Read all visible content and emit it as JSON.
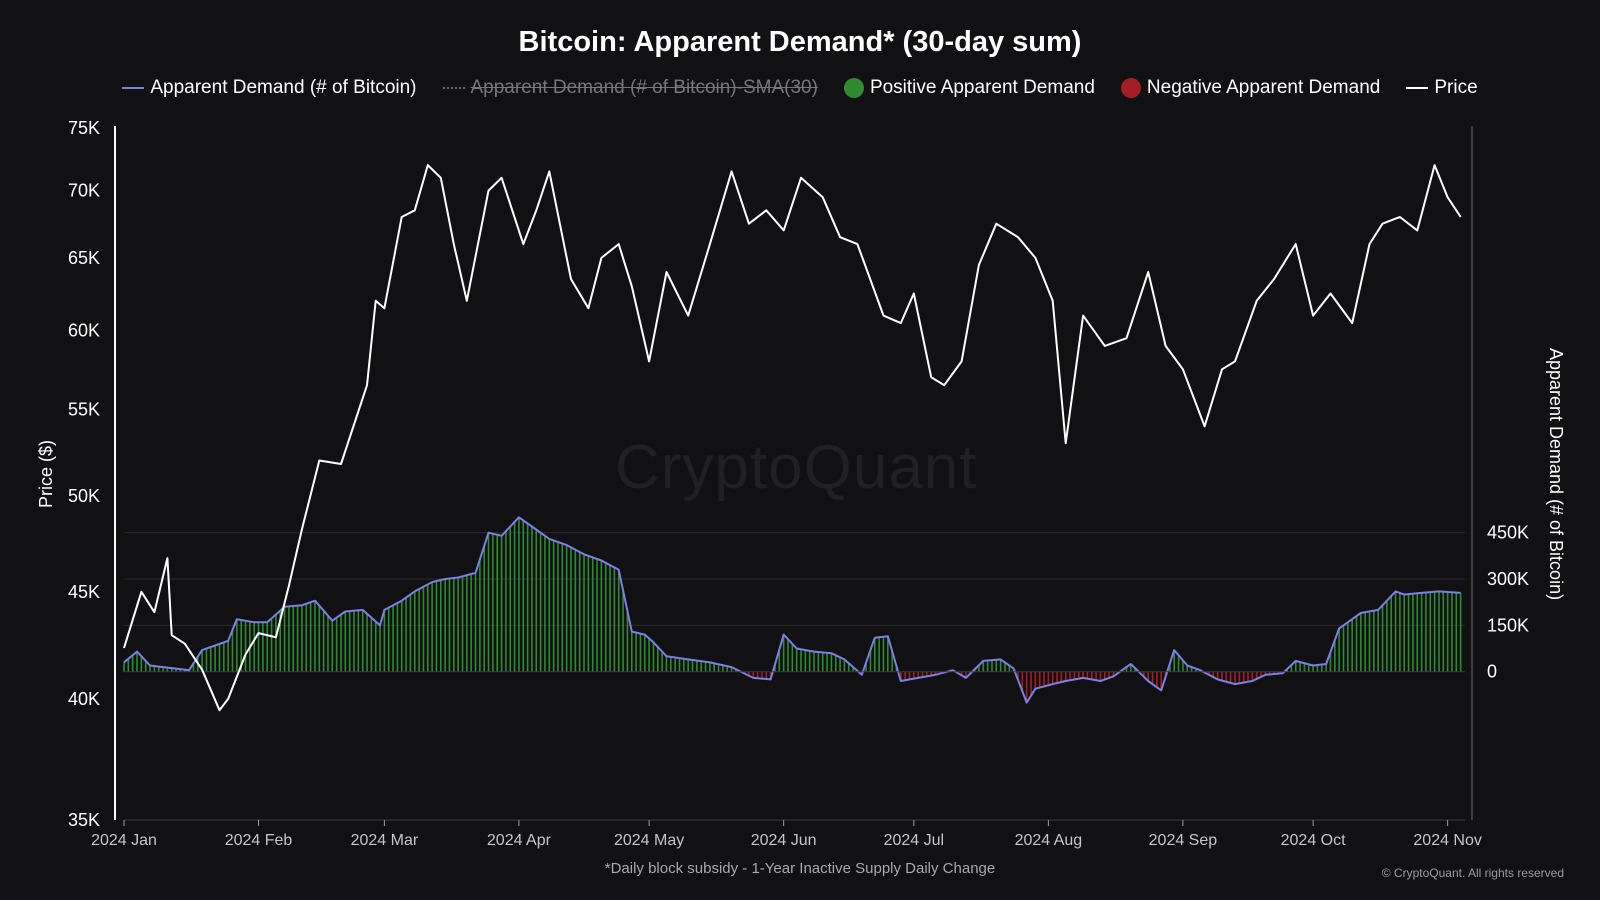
{
  "title": "Bitcoin: Apparent Demand* (30-day sum)",
  "legend": [
    {
      "label": "Apparent Demand (# of Bitcoin)",
      "kind": "line",
      "color": "#7b7fe6",
      "disabled": false
    },
    {
      "label": "Apparent Demand (# of Bitcoin)-SMA(30)",
      "kind": "dashed",
      "color": "#666666",
      "disabled": true
    },
    {
      "label": "Positive Apparent Demand",
      "kind": "dot",
      "color": "#2e8b2e",
      "disabled": false
    },
    {
      "label": "Negative Apparent Demand",
      "kind": "dot",
      "color": "#a31f24",
      "disabled": false
    },
    {
      "label": "Price",
      "kind": "line",
      "color": "#ffffff",
      "disabled": false
    }
  ],
  "watermark": "CryptoQuant",
  "footnote": "*Daily block subsidy - 1-Year Inactive Supply Daily Change",
  "copyright": "© CryptoQuant. All rights reserved",
  "chart_data": {
    "type": "line",
    "title": "Bitcoin: Apparent Demand* (30-day sum)",
    "xlabel": "",
    "ylabel_left": "Price ($)",
    "ylabel_right": "Apparent Demand (# of Bitcoin)",
    "left_axis": {
      "scale": "log",
      "ylim": [
        35000,
        75000
      ],
      "ticks": [
        35000,
        40000,
        45000,
        50000,
        55000,
        60000,
        65000,
        70000,
        75000
      ],
      "tick_labels": [
        "35K",
        "40K",
        "45K",
        "50K",
        "55K",
        "60K",
        "65K",
        "70K",
        "75K"
      ]
    },
    "right_axis": {
      "scale": "linear",
      "ylim": [
        -480000,
        1760000
      ],
      "ticks": [
        0,
        150000,
        300000,
        450000
      ],
      "tick_labels": [
        "0",
        "150K",
        "300K",
        "450K"
      ]
    },
    "x_range": [
      "2024-01-01",
      "2024-11-05"
    ],
    "x_ticks": [
      "2024-01-01",
      "2024-02-01",
      "2024-03-01",
      "2024-04-01",
      "2024-05-01",
      "2024-06-01",
      "2024-07-01",
      "2024-08-01",
      "2024-09-01",
      "2024-10-01",
      "2024-11-01"
    ],
    "x_tick_labels": [
      "2024 Jan",
      "2024 Feb",
      "2024 Mar",
      "2024 Apr",
      "2024 May",
      "2024 Jun",
      "2024 Jul",
      "2024 Aug",
      "2024 Sep",
      "2024 Oct",
      "2024 Nov"
    ],
    "grid": true,
    "legend_position": "top",
    "colors": {
      "demand_line": "#7b7fe6",
      "positive": "#2e8b2e",
      "negative": "#a31f24",
      "price": "#ffffff"
    },
    "series": [
      {
        "name": "Price",
        "axis": "left",
        "x": [
          "2024-01-01",
          "2024-01-05",
          "2024-01-08",
          "2024-01-11",
          "2024-01-12",
          "2024-01-15",
          "2024-01-19",
          "2024-01-23",
          "2024-01-25",
          "2024-01-29",
          "2024-02-01",
          "2024-02-05",
          "2024-02-08",
          "2024-02-11",
          "2024-02-15",
          "2024-02-20",
          "2024-02-26",
          "2024-02-28",
          "2024-03-01",
          "2024-03-05",
          "2024-03-08",
          "2024-03-11",
          "2024-03-14",
          "2024-03-17",
          "2024-03-20",
          "2024-03-25",
          "2024-03-28",
          "2024-04-02",
          "2024-04-05",
          "2024-04-08",
          "2024-04-13",
          "2024-04-17",
          "2024-04-20",
          "2024-04-24",
          "2024-04-27",
          "2024-05-01",
          "2024-05-05",
          "2024-05-10",
          "2024-05-15",
          "2024-05-20",
          "2024-05-24",
          "2024-05-28",
          "2024-06-01",
          "2024-06-05",
          "2024-06-10",
          "2024-06-14",
          "2024-06-18",
          "2024-06-24",
          "2024-06-28",
          "2024-07-01",
          "2024-07-05",
          "2024-07-08",
          "2024-07-12",
          "2024-07-16",
          "2024-07-20",
          "2024-07-25",
          "2024-07-29",
          "2024-08-02",
          "2024-08-05",
          "2024-08-09",
          "2024-08-14",
          "2024-08-19",
          "2024-08-24",
          "2024-08-28",
          "2024-09-01",
          "2024-09-06",
          "2024-09-10",
          "2024-09-13",
          "2024-09-18",
          "2024-09-22",
          "2024-09-27",
          "2024-10-01",
          "2024-10-05",
          "2024-10-10",
          "2024-10-14",
          "2024-10-17",
          "2024-10-21",
          "2024-10-25",
          "2024-10-29",
          "2024-11-01",
          "2024-11-04"
        ],
        "values": [
          42300,
          45000,
          44000,
          46700,
          42900,
          42500,
          41300,
          39500,
          40000,
          42000,
          43000,
          42800,
          45300,
          48200,
          52000,
          51800,
          56500,
          62000,
          61500,
          68000,
          68500,
          72000,
          71000,
          66000,
          62000,
          70000,
          71000,
          66000,
          68500,
          71500,
          63500,
          61500,
          65000,
          66000,
          63000,
          58000,
          64000,
          61000,
          66000,
          71500,
          67500,
          68500,
          67000,
          71000,
          69500,
          66500,
          66000,
          61000,
          60500,
          62500,
          57000,
          56500,
          58000,
          64500,
          67500,
          66500,
          65000,
          62000,
          53000,
          61000,
          59000,
          59500,
          64000,
          59000,
          57500,
          54000,
          57500,
          58000,
          62000,
          63500,
          66000,
          61000,
          62500,
          60500,
          66000,
          67500,
          68000,
          67000,
          72000,
          69500,
          68000
        ]
      },
      {
        "name": "Apparent Demand (# of Bitcoin)",
        "axis": "right",
        "x": [
          "2024-01-01",
          "2024-01-04",
          "2024-01-07",
          "2024-01-10",
          "2024-01-13",
          "2024-01-16",
          "2024-01-19",
          "2024-01-22",
          "2024-01-25",
          "2024-01-27",
          "2024-01-31",
          "2024-02-03",
          "2024-02-07",
          "2024-02-11",
          "2024-02-14",
          "2024-02-18",
          "2024-02-21",
          "2024-02-25",
          "2024-02-29",
          "2024-03-01",
          "2024-03-05",
          "2024-03-08",
          "2024-03-12",
          "2024-03-15",
          "2024-03-18",
          "2024-03-22",
          "2024-03-25",
          "2024-03-28",
          "2024-04-01",
          "2024-04-04",
          "2024-04-08",
          "2024-04-12",
          "2024-04-16",
          "2024-04-20",
          "2024-04-24",
          "2024-04-27",
          "2024-04-30",
          "2024-05-02",
          "2024-05-05",
          "2024-05-10",
          "2024-05-15",
          "2024-05-20",
          "2024-05-25",
          "2024-05-29",
          "2024-06-01",
          "2024-06-04",
          "2024-06-08",
          "2024-06-12",
          "2024-06-15",
          "2024-06-19",
          "2024-06-22",
          "2024-06-25",
          "2024-06-28",
          "2024-07-02",
          "2024-07-06",
          "2024-07-10",
          "2024-07-13",
          "2024-07-17",
          "2024-07-21",
          "2024-07-24",
          "2024-07-27",
          "2024-07-29",
          "2024-08-02",
          "2024-08-05",
          "2024-08-09",
          "2024-08-13",
          "2024-08-16",
          "2024-08-20",
          "2024-08-24",
          "2024-08-27",
          "2024-08-30",
          "2024-09-02",
          "2024-09-05",
          "2024-09-09",
          "2024-09-13",
          "2024-09-17",
          "2024-09-20",
          "2024-09-24",
          "2024-09-27",
          "2024-10-01",
          "2024-10-04",
          "2024-10-07",
          "2024-10-09",
          "2024-10-12",
          "2024-10-16",
          "2024-10-20",
          "2024-10-22",
          "2024-10-26",
          "2024-10-30",
          "2024-11-04"
        ],
        "values": [
          30000,
          65000,
          20000,
          15000,
          10000,
          5000,
          70000,
          85000,
          100000,
          170000,
          160000,
          160000,
          210000,
          215000,
          230000,
          165000,
          195000,
          200000,
          150000,
          200000,
          230000,
          260000,
          290000,
          300000,
          305000,
          320000,
          450000,
          440000,
          500000,
          470000,
          430000,
          410000,
          380000,
          360000,
          330000,
          130000,
          120000,
          95000,
          50000,
          40000,
          30000,
          15000,
          -20000,
          -25000,
          120000,
          75000,
          65000,
          60000,
          40000,
          -10000,
          110000,
          115000,
          -30000,
          -20000,
          -10000,
          5000,
          -20000,
          35000,
          40000,
          10000,
          -100000,
          -55000,
          -40000,
          -30000,
          -20000,
          -30000,
          -15000,
          25000,
          -30000,
          -60000,
          70000,
          20000,
          5000,
          -25000,
          -40000,
          -30000,
          -10000,
          -5000,
          35000,
          20000,
          25000,
          140000,
          160000,
          190000,
          200000,
          260000,
          250000,
          255000,
          260000,
          255000
        ]
      }
    ]
  }
}
